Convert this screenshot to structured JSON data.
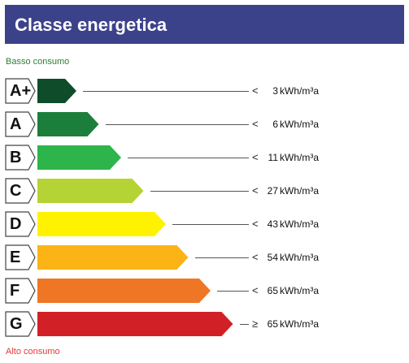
{
  "header": {
    "title": "Classe energetica"
  },
  "scale": {
    "low_label": "Basso consumo",
    "high_label": "Alto consumo"
  },
  "unit": "kWh/m³a",
  "classes": [
    {
      "label": "A+",
      "comparator": "<",
      "value": "3",
      "color": "#0f4d2a"
    },
    {
      "label": "A",
      "comparator": "<",
      "value": "6",
      "color": "#1b7f3b"
    },
    {
      "label": "B",
      "comparator": "<",
      "value": "11",
      "color": "#2db44b"
    },
    {
      "label": "C",
      "comparator": "<",
      "value": "27",
      "color": "#b5d334"
    },
    {
      "label": "D",
      "comparator": "<",
      "value": "43",
      "color": "#fff200"
    },
    {
      "label": "E",
      "comparator": "<",
      "value": "54",
      "color": "#fbb316"
    },
    {
      "label": "F",
      "comparator": "<",
      "value": "65",
      "color": "#ee7624"
    },
    {
      "label": "G",
      "comparator": "≥",
      "value": "65",
      "color": "#d22027"
    }
  ]
}
